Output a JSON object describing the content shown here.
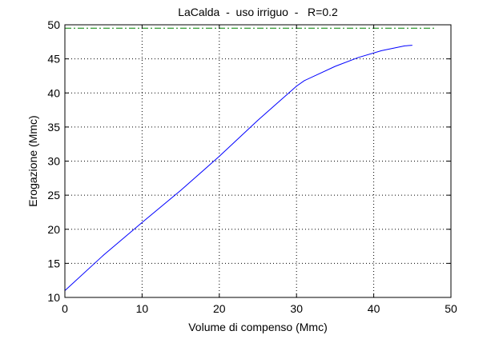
{
  "chart_data": {
    "type": "line",
    "title": "LaCalda  -  uso irriguo  -   R=0.2",
    "xlabel": "Volume di compenso (Mmc)",
    "ylabel": "Erogazione (Mmc)",
    "xlim": [
      0,
      50
    ],
    "ylim": [
      10,
      50
    ],
    "xticks": [
      0,
      10,
      20,
      30,
      40,
      50
    ],
    "yticks": [
      10,
      15,
      20,
      25,
      30,
      35,
      40,
      45,
      50
    ],
    "grid": true,
    "series": [
      {
        "color": "#0000ff",
        "style": "solid",
        "x": [
          0,
          5,
          10,
          15,
          20,
          25,
          30,
          31,
          35,
          38,
          41,
          44,
          45
        ],
        "y": [
          11.0,
          16.2,
          21.0,
          25.7,
          30.7,
          36.0,
          41.0,
          41.8,
          43.9,
          45.2,
          46.2,
          46.9,
          47.0
        ]
      },
      {
        "color": "#008000",
        "style": "dashdot",
        "x": [
          0,
          50
        ],
        "y": [
          49.5,
          49.5
        ]
      }
    ]
  }
}
